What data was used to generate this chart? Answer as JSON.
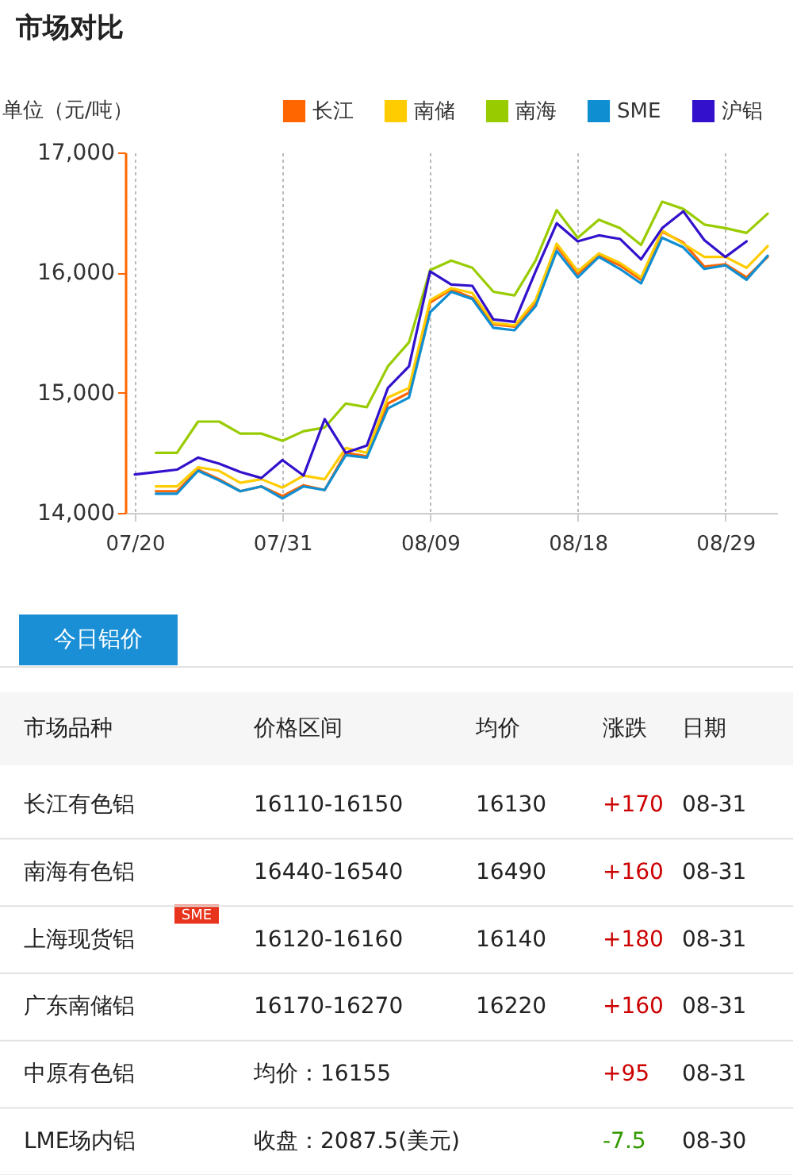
{
  "chart_data": [
    {
      "type": "line",
      "title": "市场对比",
      "ylabel": "单位（元/吨）",
      "categories": [
        "07/20",
        null,
        null,
        null,
        null,
        null,
        null,
        "07/31",
        null,
        null,
        null,
        null,
        null,
        null,
        "08/09",
        null,
        null,
        null,
        null,
        null,
        null,
        "08/18",
        null,
        null,
        null,
        null,
        null,
        null,
        "08/29",
        null,
        null
      ],
      "ylim": [
        14000,
        17000
      ],
      "yticks": [
        {
          "value": 14000,
          "label": "14,000"
        },
        {
          "value": 15000,
          "label": "15,000"
        },
        {
          "value": 16000,
          "label": "16,000"
        },
        {
          "value": 17000,
          "label": "17,000"
        }
      ],
      "grid": "x",
      "legend": "top right",
      "line_style": "solid",
      "series": [
        {
          "name": "长江",
          "color": "#ff6600",
          "values": [
            null,
            14180,
            14180,
            14360,
            14280,
            14180,
            14220,
            14140,
            14230,
            14190,
            14500,
            14470,
            14910,
            15000,
            15750,
            15860,
            15790,
            15570,
            15550,
            15750,
            16220,
            15990,
            16140,
            16060,
            15940,
            16340,
            16250,
            16050,
            16070,
            15960,
            16130
          ]
        },
        {
          "name": "南储",
          "color": "#ffcc00",
          "values": [
            null,
            14220,
            14220,
            14380,
            14350,
            14250,
            14280,
            14210,
            14310,
            14280,
            14540,
            14500,
            14960,
            15040,
            15770,
            15870,
            15830,
            15580,
            15560,
            15770,
            16240,
            16010,
            16160,
            16080,
            15960,
            16350,
            16240,
            16130,
            16130,
            16040,
            16220
          ]
        },
        {
          "name": "南海",
          "color": "#99cc00",
          "values": [
            null,
            14500,
            14500,
            14760,
            14760,
            14660,
            14660,
            14600,
            14680,
            14710,
            14910,
            14880,
            15220,
            15420,
            16020,
            16100,
            16040,
            15840,
            15810,
            16100,
            16520,
            16290,
            16440,
            16370,
            16230,
            16590,
            16530,
            16400,
            16370,
            16330,
            16490
          ]
        },
        {
          "name": "SME",
          "color": "#0f8fd2",
          "values": [
            null,
            14160,
            14160,
            14350,
            14270,
            14180,
            14220,
            14120,
            14220,
            14190,
            14480,
            14460,
            14870,
            14960,
            15670,
            15840,
            15780,
            15540,
            15520,
            15720,
            16180,
            15960,
            16130,
            16030,
            15910,
            16290,
            16210,
            16030,
            16060,
            15940,
            16140
          ]
        },
        {
          "name": "沪铝",
          "color": "#3311cc",
          "values": [
            14320,
            14340,
            14360,
            14460,
            14410,
            14340,
            14290,
            14440,
            14310,
            14780,
            14500,
            14560,
            15040,
            15220,
            16010,
            15900,
            15890,
            15610,
            15590,
            16010,
            16410,
            16260,
            16310,
            16280,
            16110,
            16370,
            16510,
            16270,
            16130,
            16260,
            null
          ]
        }
      ]
    },
    {
      "type": "other",
      "title": "今日铝价",
      "categories": [
        "市场品种",
        "价格区间",
        "均价",
        "涨跌",
        "日期"
      ],
      "cell_labels": [
        [
          "长江有色铝",
          "16110-16150",
          "16130",
          "+170",
          "08-31"
        ],
        [
          "南海有色铝",
          "16440-16540",
          "16490",
          "+160",
          "08-31"
        ],
        [
          "上海现货铝",
          "16120-16160",
          "16140",
          "+180",
          "08-31"
        ],
        [
          "广东南储铝",
          "16170-16270",
          "16220",
          "+160",
          "08-31"
        ],
        [
          "中原有色铝",
          "均价：16155",
          null,
          "+95",
          "08-31"
        ],
        [
          "LME场内铝",
          "收盘：2087.5(美元)",
          null,
          "-7.5",
          "08-30"
        ]
      ],
      "annotations": [
        "SME"
      ]
    }
  ]
}
